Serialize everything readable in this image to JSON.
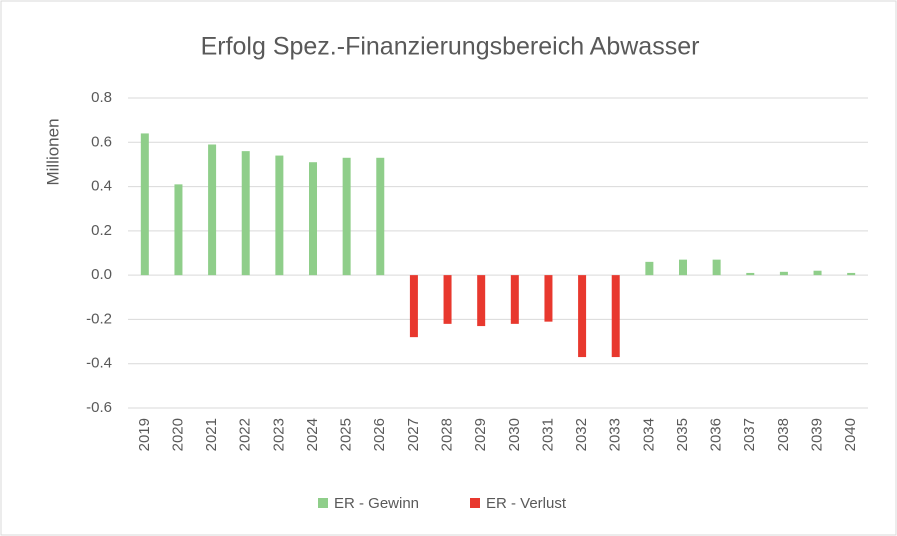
{
  "chart_data": {
    "type": "bar",
    "title": "Erfolg Spez.-Finanzierungsbereich  Abwasser",
    "y_label": "Millionen",
    "categories": [
      "2019",
      "2020",
      "2021",
      "2022",
      "2023",
      "2024",
      "2025",
      "2026",
      "2027",
      "2028",
      "2029",
      "2030",
      "2031",
      "2032",
      "2033",
      "2034",
      "2035",
      "2036",
      "2037",
      "2038",
      "2039",
      "2040"
    ],
    "series": [
      {
        "name": "ER - Gewinn",
        "color": "#8fce8a",
        "values": [
          0.64,
          0.41,
          0.59,
          0.56,
          0.54,
          0.51,
          0.53,
          0.53,
          null,
          null,
          null,
          null,
          null,
          null,
          null,
          0.06,
          0.07,
          0.07,
          0.01,
          0.015,
          0.02,
          0.01
        ]
      },
      {
        "name": "ER - Verlust",
        "color": "#e8382e",
        "values": [
          null,
          null,
          null,
          null,
          null,
          null,
          null,
          null,
          -0.28,
          -0.22,
          -0.23,
          -0.22,
          -0.21,
          -0.37,
          -0.37,
          null,
          null,
          null,
          null,
          null,
          null,
          null
        ]
      }
    ],
    "ylim": [
      -0.6,
      0.8
    ],
    "yticks": [
      -0.6,
      -0.4,
      -0.2,
      {
        "value": 0,
        "label": "0.0"
      },
      0.2,
      0.4,
      0.6,
      0.8
    ],
    "grid": true,
    "legend": "bottom"
  }
}
